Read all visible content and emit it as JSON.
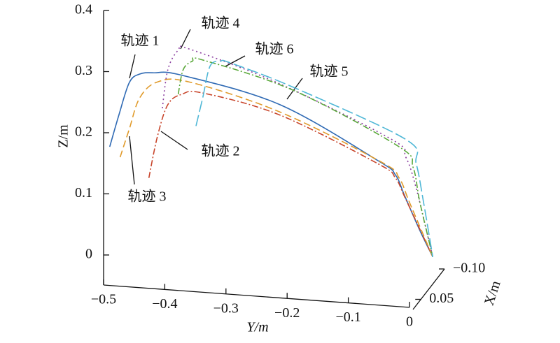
{
  "chart_data": {
    "type": "line3d",
    "xlabel": "Y/m",
    "ylabel": "Z/m",
    "zlabel": "X/m",
    "ylim": [
      -0.5,
      0
    ],
    "yticks": [
      {
        "value": -0.5,
        "label": "−0.5"
      },
      {
        "value": -0.4,
        "label": "−0.4"
      },
      {
        "value": -0.3,
        "label": "−0.3"
      },
      {
        "value": -0.2,
        "label": "−0.2"
      },
      {
        "value": -0.1,
        "label": "−0.1"
      },
      0
    ],
    "zlim": [
      0,
      0.4
    ],
    "zticks": [
      0,
      0.1,
      0.2,
      0.3,
      0.4
    ],
    "xlim": [
      0.1,
      -0.1
    ],
    "xticks": [
      {
        "value": -0.1,
        "label": "−0.10"
      },
      0.05
    ],
    "series": [
      {
        "name": "轨迹 1",
        "color": "#2f6ab4",
        "style": "solid",
        "y": [
          -0.49,
          -0.475,
          -0.458,
          -0.441,
          -0.418,
          -0.372,
          -0.212,
          -0.051,
          -0.023,
          -0.008,
          0.017,
          0.038
        ],
        "z": [
          0.177,
          0.229,
          0.282,
          0.296,
          0.298,
          0.294,
          0.246,
          0.154,
          0.131,
          0.097,
          0.04,
          -0.003
        ]
      },
      {
        "name": "轨迹 2",
        "color": "#c8452b",
        "style": "dashdot",
        "y": [
          -0.426,
          -0.412,
          -0.395,
          -0.372,
          -0.338,
          -0.212,
          -0.051,
          -0.023,
          -0.006,
          0.038
        ],
        "z": [
          0.126,
          0.194,
          0.246,
          0.263,
          0.265,
          0.229,
          0.149,
          0.126,
          0.091,
          -0.003
        ]
      },
      {
        "name": "轨迹 3",
        "color": "#e09a2a",
        "style": "dashed",
        "y": [
          -0.473,
          -0.458,
          -0.441,
          -0.412,
          -0.36,
          -0.212,
          -0.046,
          -0.017,
          0.0,
          0.038
        ],
        "z": [
          0.16,
          0.206,
          0.257,
          0.283,
          0.283,
          0.234,
          0.152,
          0.126,
          0.086,
          -0.003
        ]
      },
      {
        "name": "轨迹 4",
        "color": "#8b3fa0",
        "style": "dotted",
        "y": [
          -0.404,
          -0.395,
          -0.378,
          -0.36,
          -0.212,
          -0.029,
          -0.006,
          0.011,
          0.038
        ],
        "z": [
          0.24,
          0.303,
          0.335,
          0.337,
          0.28,
          0.189,
          0.16,
          0.109,
          -0.003
        ]
      },
      {
        "name": "轨迹 5",
        "color": "#5aa83a",
        "style": "dashdot",
        "y": [
          -0.378,
          -0.37,
          -0.355,
          -0.338,
          -0.189,
          -0.017,
          0.006,
          0.017,
          0.038
        ],
        "z": [
          0.263,
          0.303,
          0.317,
          0.319,
          0.269,
          0.177,
          0.143,
          0.086,
          -0.003
        ]
      },
      {
        "name": "轨迹 6",
        "color": "#4fb7d6",
        "style": "longdash",
        "y": [
          -0.349,
          -0.338,
          -0.326,
          -0.309,
          -0.292,
          -0.189,
          -0.006,
          0.011,
          0.023,
          0.038
        ],
        "z": [
          0.211,
          0.257,
          0.309,
          0.317,
          0.314,
          0.274,
          0.189,
          0.149,
          0.086,
          -0.003
        ]
      }
    ]
  }
}
